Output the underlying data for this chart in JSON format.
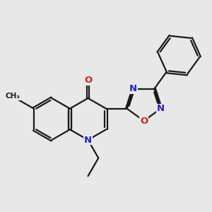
{
  "bg_color": "#e8e8e8",
  "bond_color": "#1a1a1a",
  "bond_width": 1.6,
  "dbo": 0.055,
  "atom_colors": {
    "N": "#2222cc",
    "O": "#cc2222"
  },
  "fs": 9.5
}
